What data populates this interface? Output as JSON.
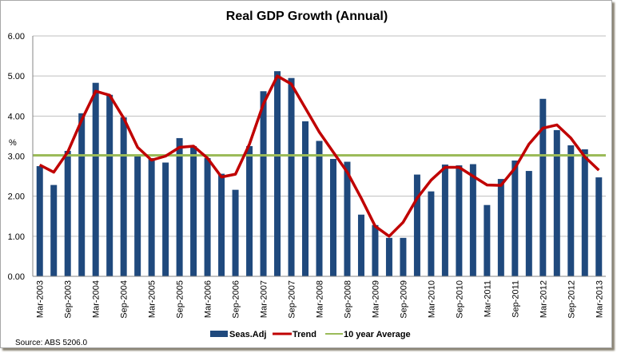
{
  "chart_data": {
    "type": "bar",
    "title": "Real GDP Growth (Annual)",
    "xlabel": "",
    "ylabel": "%",
    "ylim": [
      0,
      6
    ],
    "yticks": [
      "0.00",
      "1.00",
      "2.00",
      "3.00",
      "4.00",
      "5.00",
      "6.00"
    ],
    "grid": true,
    "legend_position": "bottom",
    "source": "Source: ABS 5206.0",
    "categories": [
      "Mar-2003",
      "Jun-2003",
      "Sep-2003",
      "Dec-2003",
      "Mar-2004",
      "Jun-2004",
      "Sep-2004",
      "Dec-2004",
      "Mar-2005",
      "Jun-2005",
      "Sep-2005",
      "Dec-2005",
      "Mar-2006",
      "Jun-2006",
      "Sep-2006",
      "Dec-2006",
      "Mar-2007",
      "Jun-2007",
      "Sep-2007",
      "Dec-2007",
      "Mar-2008",
      "Jun-2008",
      "Sep-2008",
      "Dec-2008",
      "Mar-2009",
      "Jun-2009",
      "Sep-2009",
      "Dec-2009",
      "Mar-2010",
      "Jun-2010",
      "Sep-2010",
      "Dec-2010",
      "Mar-2011",
      "Jun-2011",
      "Sep-2011",
      "Dec-2011",
      "Mar-2012",
      "Jun-2012",
      "Sep-2012",
      "Dec-2012",
      "Mar-2013"
    ],
    "xtick_labels": [
      "Mar-2003",
      "Sep-2003",
      "Mar-2004",
      "Sep-2004",
      "Mar-2005",
      "Sep-2005",
      "Mar-2006",
      "Sep-2006",
      "Mar-2007",
      "Sep-2007",
      "Mar-2008",
      "Sep-2008",
      "Mar-2009",
      "Sep-2009",
      "Mar-2010",
      "Sep-2010",
      "Mar-2011",
      "Sep-2011",
      "Mar-2012",
      "Sep-2012",
      "Mar-2013"
    ],
    "series": [
      {
        "name": "Seas.Adj",
        "type": "bar",
        "color": "#1f497d",
        "values": [
          2.75,
          2.28,
          3.13,
          4.07,
          4.83,
          4.53,
          3.97,
          3.05,
          2.95,
          2.84,
          3.45,
          3.25,
          2.95,
          2.56,
          2.16,
          3.25,
          4.62,
          5.12,
          4.95,
          3.87,
          3.38,
          2.93,
          2.86,
          1.54,
          1.28,
          0.96,
          0.96,
          2.54,
          2.12,
          2.79,
          2.77,
          2.8,
          1.78,
          2.43,
          2.89,
          2.63,
          4.43,
          3.65,
          3.27,
          3.17,
          2.47
        ]
      },
      {
        "name": "Trend",
        "type": "line",
        "color": "#c00000",
        "values": [
          2.78,
          2.6,
          3.1,
          3.9,
          4.62,
          4.52,
          3.95,
          3.22,
          2.9,
          3.0,
          3.22,
          3.25,
          2.95,
          2.48,
          2.55,
          3.3,
          4.3,
          5.0,
          4.8,
          4.2,
          3.6,
          3.1,
          2.6,
          1.95,
          1.25,
          1.0,
          1.35,
          1.95,
          2.4,
          2.72,
          2.72,
          2.5,
          2.28,
          2.27,
          2.7,
          3.3,
          3.7,
          3.78,
          3.45,
          2.98,
          2.65
        ]
      },
      {
        "name": "10 year Average",
        "type": "line",
        "color": "#9bbb59",
        "value": 3.02
      }
    ]
  }
}
